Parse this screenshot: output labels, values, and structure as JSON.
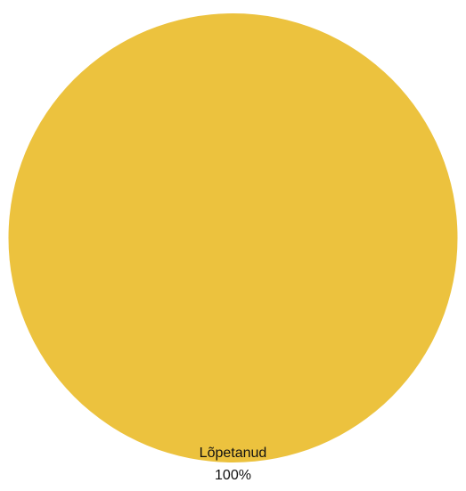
{
  "chart_data": {
    "type": "pie",
    "categories": [
      "Lõpetanud"
    ],
    "values": [
      100
    ],
    "value_labels": [
      "100%"
    ],
    "colors": [
      "#ECC23E"
    ]
  }
}
